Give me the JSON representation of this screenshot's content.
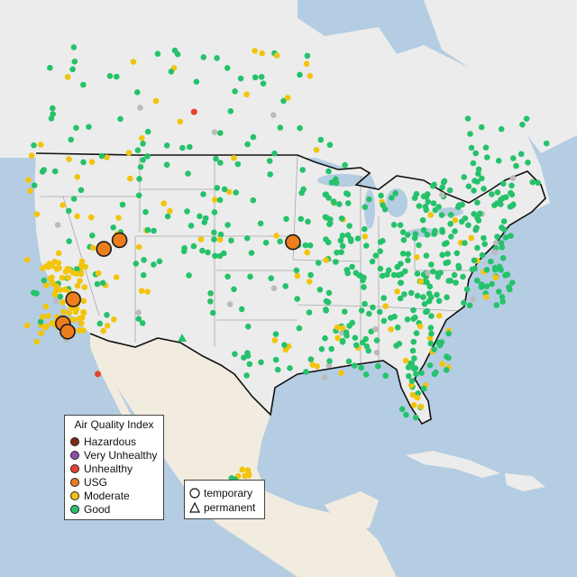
{
  "legend": {
    "title": "Air Quality Index",
    "categories": [
      {
        "label": "Hazardous",
        "color": "#7e2a1a"
      },
      {
        "label": "Very Unhealthy",
        "color": "#8f4fa5"
      },
      {
        "label": "Unhealthy",
        "color": "#e8412e"
      },
      {
        "label": "USG",
        "color": "#ec7e1e"
      },
      {
        "label": "Moderate",
        "color": "#f2c40c"
      },
      {
        "label": "Good",
        "color": "#25c26b"
      }
    ]
  },
  "monitor_types": [
    {
      "label": "temporary",
      "symbol": "circle"
    },
    {
      "label": "permanent",
      "symbol": "triangle"
    }
  ],
  "colors": {
    "water": "#b4cde2",
    "land": "#ececec",
    "mexico_land": "#f1ecdf",
    "us_border": "#111111",
    "state_border": "#a8a8a8",
    "no_data": "#bbbbbb"
  },
  "usg_sites": [
    {
      "lon": -116.2,
      "lat": 45.0
    },
    {
      "lon": -117.8,
      "lat": 44.3
    },
    {
      "lon": -96.5,
      "lat": 44.2
    },
    {
      "lon": -120.0,
      "lat": 39.8
    },
    {
      "lon": -120.5,
      "lat": 37.6
    },
    {
      "lon": -119.8,
      "lat": 36.8
    }
  ],
  "unhealthy_sites": [
    {
      "lon": -109.5,
      "lat": 56.5
    },
    {
      "lon": -115.8,
      "lat": 32.6
    }
  ]
}
